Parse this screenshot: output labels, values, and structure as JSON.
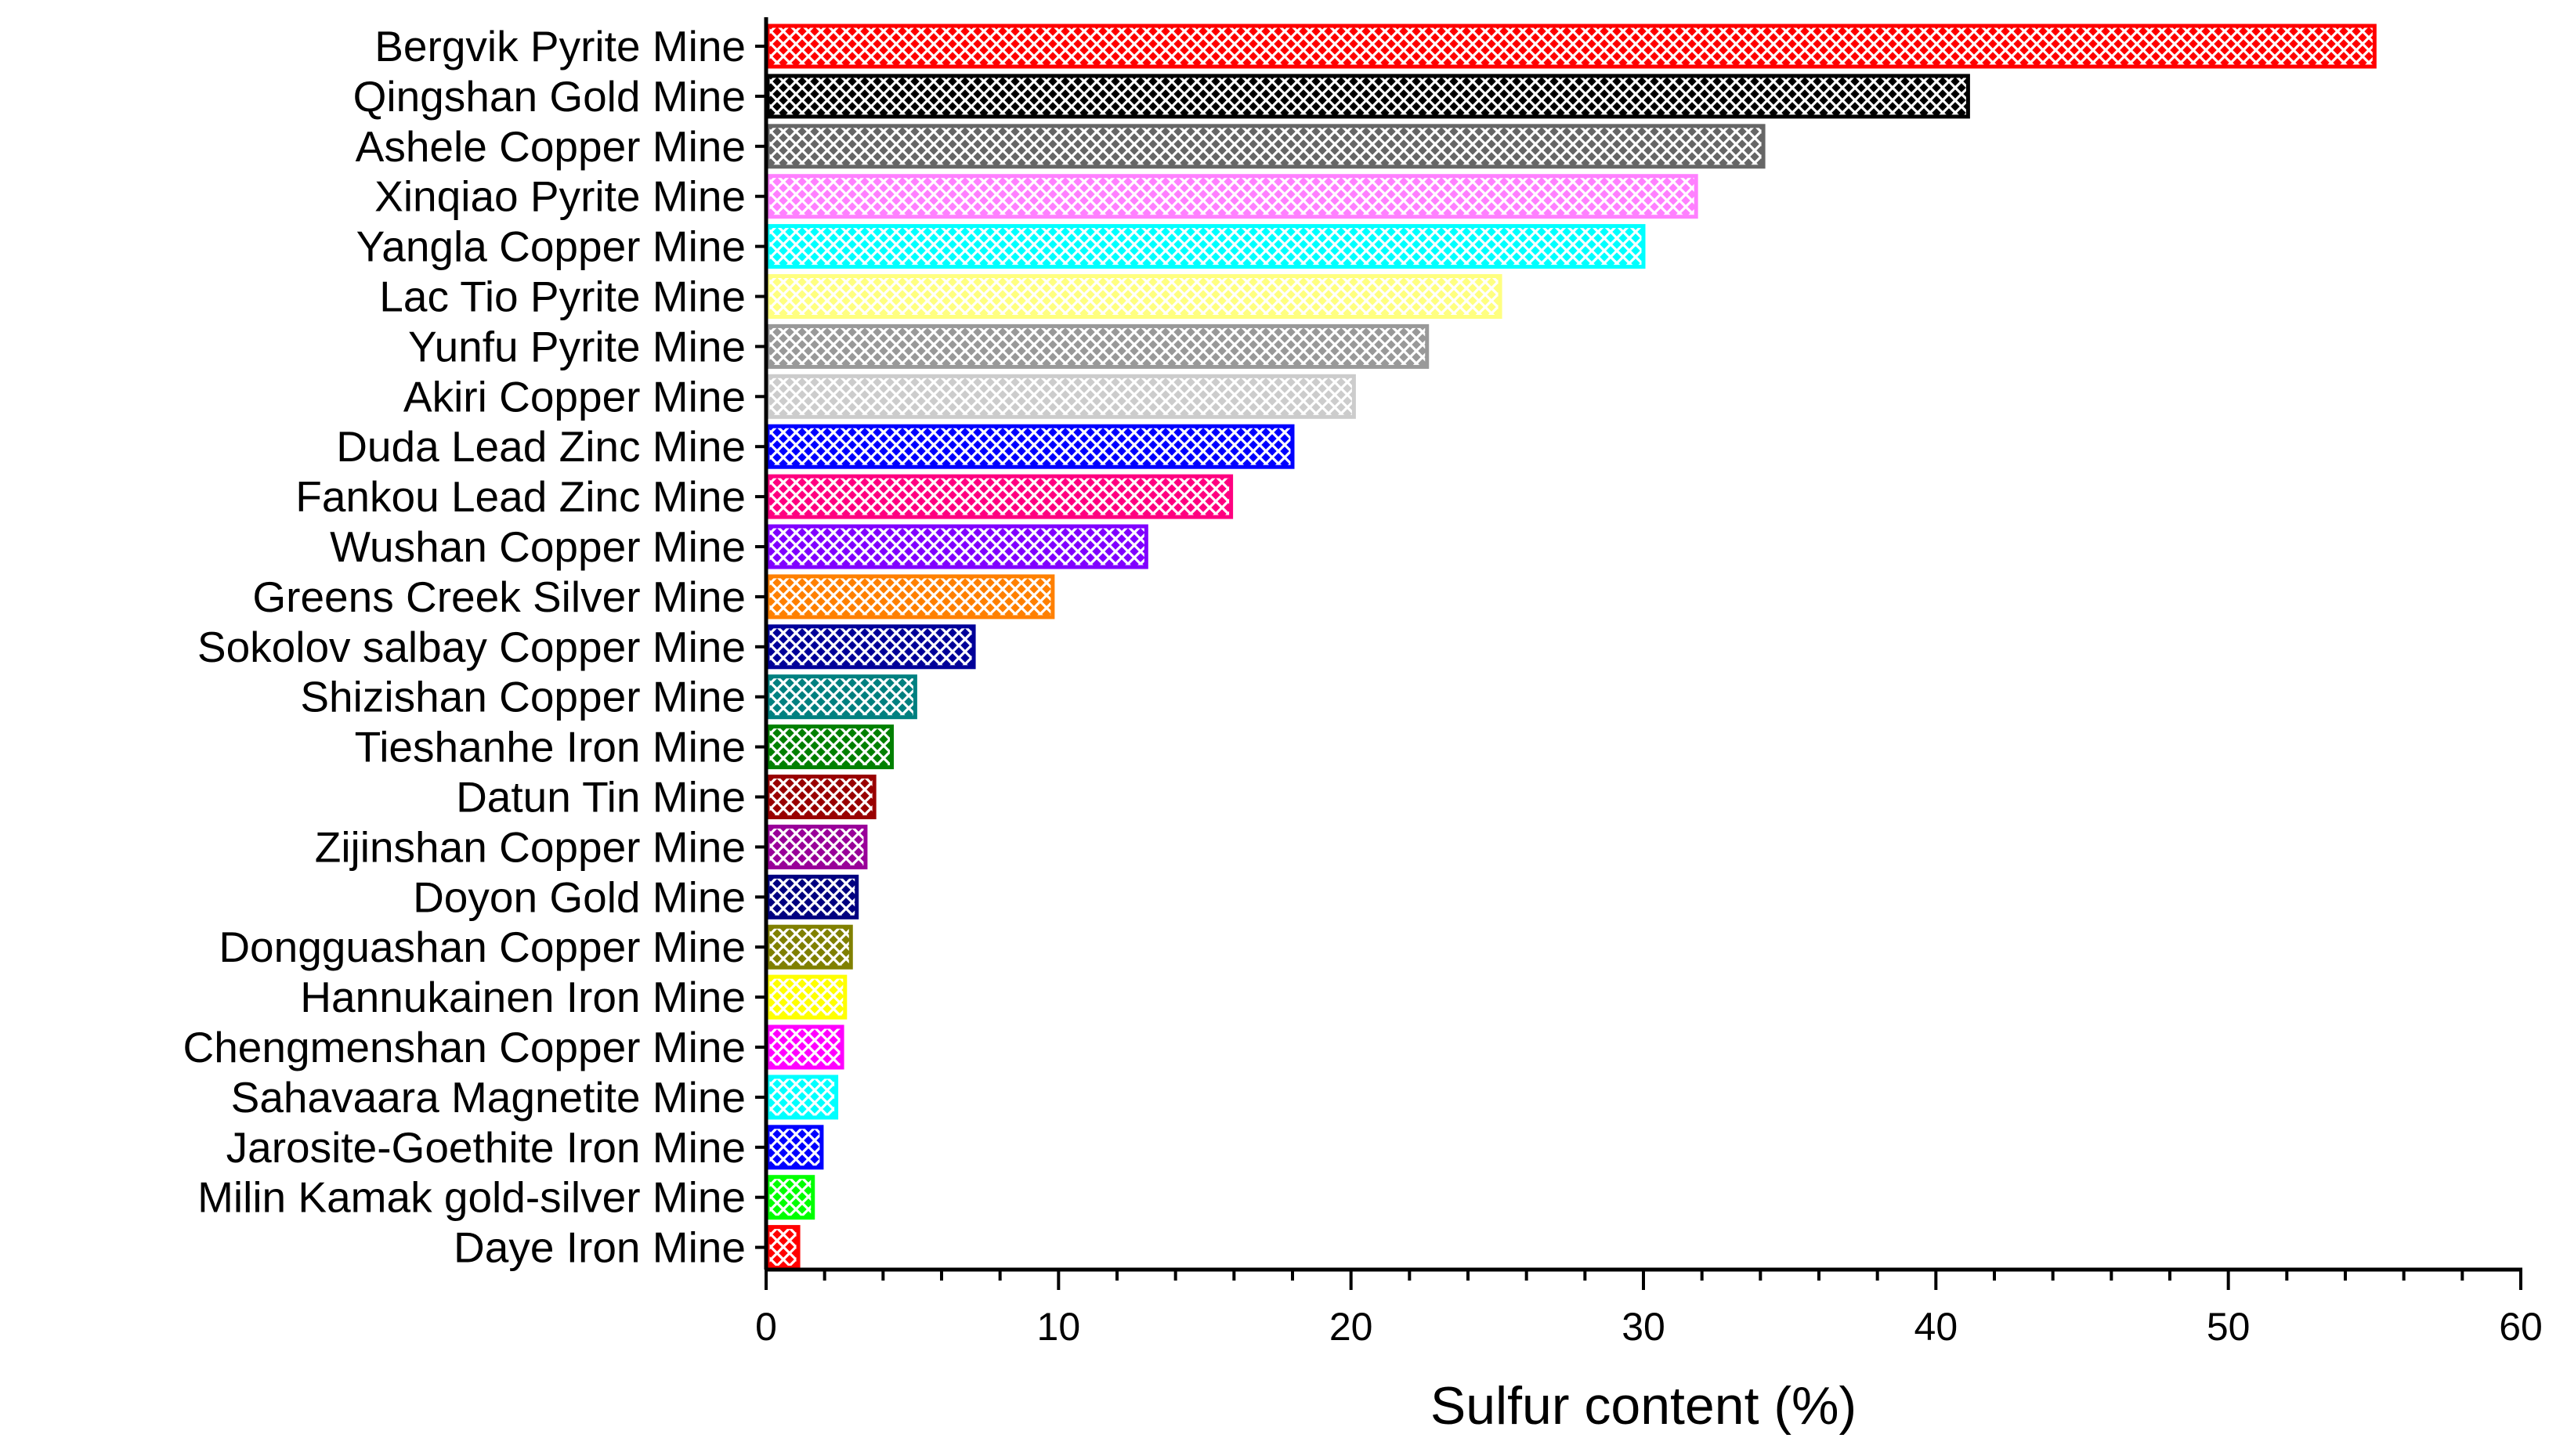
{
  "chart_data": {
    "type": "bar",
    "orientation": "horizontal",
    "xlabel": "Sulfur content (%)",
    "ylabel": "",
    "xlim": [
      0,
      60
    ],
    "x_major_ticks": [
      0,
      10,
      20,
      30,
      40,
      50,
      60
    ],
    "x_minor_step": 2,
    "grid": false,
    "legend": "none",
    "bar_pattern": "crosshatch",
    "categories": [
      "Bergvik  Pyrite  Mine",
      "Qingshan Gold Mine",
      "Ashele Copper Mine",
      "Xinqiao Pyrite Mine",
      "Yangla Copper Mine",
      "Lac Tio  Pyrite Mine",
      "Yunfu Pyrite Mine",
      "Akiri  Copper Mine",
      "Duda Lead Zinc Mine",
      "Fankou Lead Zinc Mine",
      "Wushan Copper Mine",
      "Greens Creek Silver Mine",
      "Sokolov salbay Copper Mine",
      "Shizishan Copper Mine",
      "Tieshanhe Iron Mine",
      "Datun Tin Mine",
      "Zijinshan  Copper Mine",
      "Doyon Gold Mine",
      "Dongguashan Copper Mine",
      "Hannukainen  Iron Mine",
      "Chengmenshan Copper Mine",
      "Sahavaara Magnetite Mine",
      "Jarosite-Goethite Iron Mine",
      "Milin Kamak gold-silver Mine",
      "Daye Iron Mine"
    ],
    "values": [
      55.0,
      41.1,
      34.1,
      31.8,
      30.0,
      25.1,
      22.6,
      20.1,
      18.0,
      15.9,
      13.0,
      9.8,
      7.1,
      5.1,
      4.3,
      3.7,
      3.4,
      3.1,
      2.9,
      2.7,
      2.6,
      2.4,
      1.9,
      1.6,
      1.1
    ],
    "colors": [
      "#ff0000",
      "#000000",
      "#666666",
      "#ff80ff",
      "#00ffff",
      "#ffff80",
      "#999999",
      "#cccccc",
      "#0000ff",
      "#ff0080",
      "#8000ff",
      "#ff8000",
      "#000099",
      "#008080",
      "#008000",
      "#990000",
      "#990099",
      "#000080",
      "#808000",
      "#ffff00",
      "#ff00ff",
      "#00ffff",
      "#0000ff",
      "#00ff00",
      "#ff0000"
    ]
  }
}
